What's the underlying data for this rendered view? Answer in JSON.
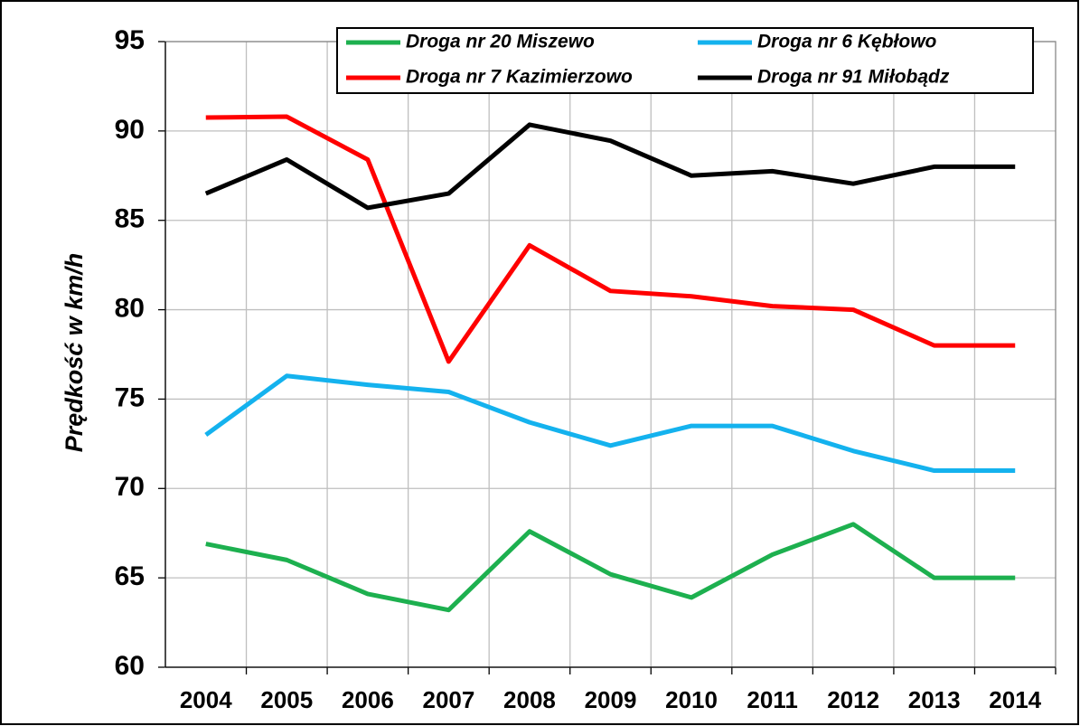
{
  "chart_data": {
    "type": "line",
    "ylabel": "Prędkość w km/h",
    "categories": [
      "2004",
      "2005",
      "2006",
      "2007",
      "2008",
      "2009",
      "2010",
      "2011",
      "2012",
      "2013",
      "2014"
    ],
    "series": [
      {
        "name": "Droga nr 20 Miszewo",
        "color": "#1db04f",
        "values": [
          66.9,
          66.0,
          64.1,
          63.2,
          67.6,
          65.2,
          63.9,
          66.3,
          68.0,
          65.0,
          65.0
        ]
      },
      {
        "name": "Droga nr 6 Kębłowo",
        "color": "#14b2ee",
        "values": [
          73.0,
          76.3,
          75.8,
          75.4,
          73.7,
          72.4,
          73.5,
          73.5,
          72.1,
          71.0,
          71.0
        ]
      },
      {
        "name": "Droga nr 7 Kazimierzowo",
        "color": "#ff0000",
        "values": [
          90.75,
          90.8,
          88.4,
          77.1,
          83.6,
          81.05,
          80.75,
          80.2,
          80.0,
          78.0,
          78.0
        ]
      },
      {
        "name": "Droga nr 91 Miłobądz",
        "color": "#000000",
        "values": [
          86.5,
          88.4,
          85.7,
          86.5,
          90.35,
          89.45,
          87.5,
          87.75,
          87.05,
          88.0,
          88.0
        ]
      }
    ],
    "ylim": [
      60,
      95
    ],
    "yticks": [
      60,
      65,
      70,
      75,
      80,
      85,
      90,
      95
    ],
    "grid": true
  }
}
